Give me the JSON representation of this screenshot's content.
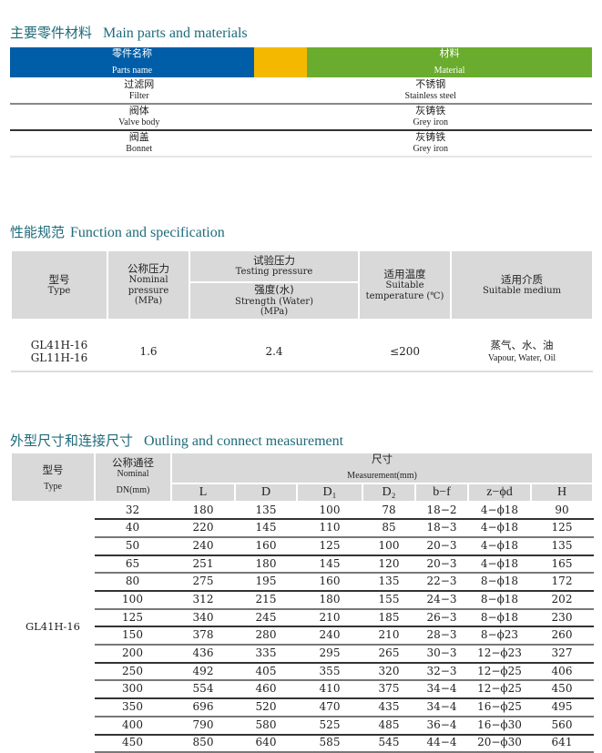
{
  "parts": {
    "title_zh": "主要零件材料",
    "title_en": "Main parts and materials",
    "header": {
      "part_zh": "零件名称",
      "part_en": "Parts name",
      "mat_zh": "材料",
      "mat_en": "Material"
    },
    "colors": {
      "blue": "#005ea8",
      "orange": "#f5b800",
      "green": "#6aac2d"
    },
    "rows": [
      {
        "part_zh": "过滤网",
        "part_en": "Filter",
        "mat_zh": "不锈钢",
        "mat_en": "Stainless steel"
      },
      {
        "part_zh": "阀体",
        "part_en": "Valve body",
        "mat_zh": "灰铸铁",
        "mat_en": "Grey iron"
      },
      {
        "part_zh": "阀盖",
        "part_en": "Bonnet",
        "mat_zh": "灰铸铁",
        "mat_en": "Grey iron"
      }
    ]
  },
  "spec": {
    "title_zh": "性能规范",
    "title_en": "Function and specification",
    "header": {
      "type_zh": "型号",
      "type_en": "Type",
      "np_zh": "公称压力",
      "np_en": "Nominal pressure",
      "np_unit": "(MPa)",
      "tp_zh": "试验压力",
      "tp_en": "Testing pressure",
      "st_zh": "强度(水)",
      "st_en": "Strength (Water)",
      "st_unit": "(MPa)",
      "temp_zh": "适用温度",
      "temp_en1": "Suitable",
      "temp_en2": "temperature (℃)",
      "med_zh": "适用介质",
      "med_en": "Suitable medium"
    },
    "row": {
      "type1": "GL41H-16",
      "type2": "GL11H-16",
      "np": "1.6",
      "strength": "2.4",
      "temp": "≤200",
      "med_zh": "蒸气、水、油",
      "med_en": "Vapour, Water,  Oil"
    }
  },
  "dims": {
    "title_zh": "外型尺寸和连接尺寸",
    "title_en": "Outling and connect measurement",
    "header": {
      "type_zh": "型号",
      "type_en": "Type",
      "dn_zh": "公称通径",
      "dn_en1": "Nominal",
      "dn_en2": "DN(mm)",
      "meas_zh": "尺寸",
      "meas_en": "Measurement(mm)",
      "cols": [
        "L",
        "D",
        "D₁",
        "D₂",
        "b−f",
        "z−ϕd",
        "H"
      ]
    },
    "type": "GL41H-16",
    "rows": [
      [
        "32",
        "180",
        "135",
        "100",
        "78",
        "18−2",
        "4−ϕ18",
        "90"
      ],
      [
        "40",
        "220",
        "145",
        "110",
        "85",
        "18−3",
        "4−ϕ18",
        "125"
      ],
      [
        "50",
        "240",
        "160",
        "125",
        "100",
        "20−3",
        "4−ϕ18",
        "135"
      ],
      [
        "65",
        "251",
        "180",
        "145",
        "120",
        "20−3",
        "4−ϕ18",
        "165"
      ],
      [
        "80",
        "275",
        "195",
        "160",
        "135",
        "22−3",
        "8−ϕ18",
        "172"
      ],
      [
        "100",
        "312",
        "215",
        "180",
        "155",
        "24−3",
        "8−ϕ18",
        "202"
      ],
      [
        "125",
        "340",
        "245",
        "210",
        "185",
        "26−3",
        "8−ϕ18",
        "230"
      ],
      [
        "150",
        "378",
        "280",
        "240",
        "210",
        "28−3",
        "8−ϕ23",
        "260"
      ],
      [
        "200",
        "436",
        "335",
        "295",
        "265",
        "30−3",
        "12−ϕ23",
        "327"
      ],
      [
        "250",
        "492",
        "405",
        "355",
        "320",
        "32−3",
        "12−ϕ25",
        "406"
      ],
      [
        "300",
        "554",
        "460",
        "410",
        "375",
        "34−4",
        "12−ϕ25",
        "450"
      ],
      [
        "350",
        "696",
        "520",
        "470",
        "435",
        "34−4",
        "16−ϕ25",
        "495"
      ],
      [
        "400",
        "790",
        "580",
        "525",
        "485",
        "36−4",
        "16−ϕ30",
        "560"
      ],
      [
        "450",
        "850",
        "640",
        "585",
        "545",
        "44−4",
        "20−ϕ30",
        "641"
      ]
    ]
  }
}
